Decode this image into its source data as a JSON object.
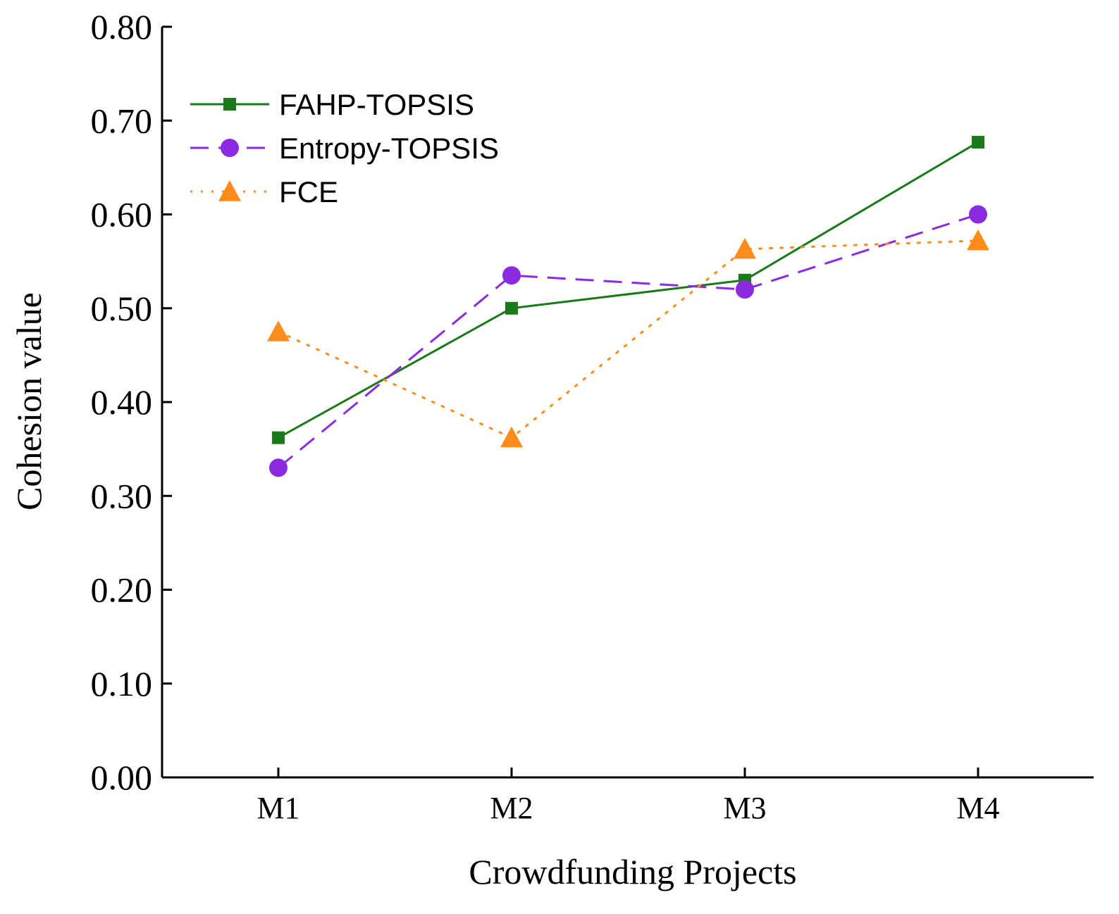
{
  "chart_data": {
    "type": "line",
    "title": "",
    "xlabel": "Crowdfunding Projects",
    "ylabel": "Cohesion value",
    "categories": [
      "M1",
      "M2",
      "M3",
      "M4"
    ],
    "ylim": [
      0,
      0.8
    ],
    "yticks": [
      "0.00",
      "0.10",
      "0.20",
      "0.30",
      "0.40",
      "0.50",
      "0.60",
      "0.70",
      "0.80"
    ],
    "grid": false,
    "legend_position": "top-left",
    "series": [
      {
        "name": "FAHP-TOPSIS",
        "values": [
          0.362,
          0.5,
          0.53,
          0.677
        ],
        "color": "#1a7a1a",
        "marker": "square",
        "line": "solid"
      },
      {
        "name": "Entropy-TOPSIS",
        "values": [
          0.33,
          0.535,
          0.52,
          0.6
        ],
        "color": "#8a2be2",
        "marker": "circle",
        "line": "dashed"
      },
      {
        "name": "FCE",
        "values": [
          0.475,
          0.362,
          0.563,
          0.572
        ],
        "color": "#ff8c1a",
        "marker": "triangle",
        "line": "dotted"
      }
    ]
  }
}
